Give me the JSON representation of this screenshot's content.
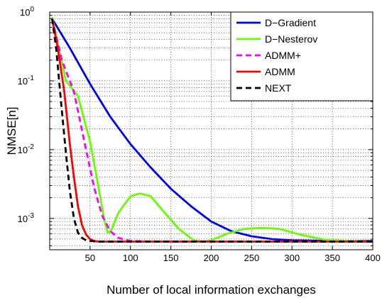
{
  "chart_data": {
    "type": "line",
    "xlabel": "Number of local information exchanges",
    "ylabel": "NMSE[n]",
    "xlim": [
      0,
      400
    ],
    "ylim": [
      0.00035,
      1
    ],
    "yscale": "log",
    "grid": true,
    "legend_position": "top-right",
    "x_ticks": [
      50,
      100,
      150,
      200,
      250,
      300,
      350,
      400
    ],
    "x_tick_labels": [
      "50",
      "100",
      "150",
      "200",
      "250",
      "300",
      "350",
      "400"
    ],
    "y_ticks": [
      1,
      0.1,
      0.01,
      0.001
    ],
    "y_tick_labels": [
      {
        "base": "10",
        "exp": "0"
      },
      {
        "base": "10",
        "exp": "-1"
      },
      {
        "base": "10",
        "exp": "-2"
      },
      {
        "base": "10",
        "exp": "-3"
      }
    ],
    "series": [
      {
        "name": "D−Gradient",
        "color": "#0000ff",
        "dash": "solid",
        "x": [
          3,
          25,
          50,
          75,
          100,
          125,
          150,
          175,
          200,
          225,
          250,
          275,
          300,
          350,
          400
        ],
        "y": [
          0.8,
          0.3,
          0.09,
          0.03,
          0.012,
          0.0055,
          0.0027,
          0.0015,
          0.0009,
          0.00065,
          0.00055,
          0.0005,
          0.00048,
          0.00047,
          0.00047
        ]
      },
      {
        "name": "D−Nesterov",
        "color": "#66ff00",
        "dash": "solid",
        "x": [
          3,
          20,
          35,
          50,
          60,
          68,
          72,
          76,
          85,
          100,
          112,
          125,
          140,
          160,
          178,
          190,
          200,
          220,
          240,
          262,
          285,
          310,
          340,
          370,
          400
        ],
        "y": [
          0.85,
          0.1,
          0.06,
          0.013,
          0.003,
          0.0009,
          0.00062,
          0.00066,
          0.0012,
          0.0021,
          0.0023,
          0.0021,
          0.0013,
          0.0007,
          0.00048,
          0.00046,
          0.00048,
          0.0006,
          0.0007,
          0.00073,
          0.0007,
          0.00058,
          0.00049,
          0.00047,
          0.00046
        ]
      },
      {
        "name": "ADMM+",
        "color": "#ff00ff",
        "dash": "dashed",
        "x": [
          3,
          15,
          30,
          45,
          55,
          65,
          75,
          85,
          100,
          130,
          160,
          200,
          300,
          400
        ],
        "y": [
          0.8,
          0.2,
          0.07,
          0.01,
          0.0028,
          0.0011,
          0.00065,
          0.00052,
          0.00047,
          0.00046,
          0.00046,
          0.00046,
          0.00046,
          0.00046
        ]
      },
      {
        "name": "ADMM",
        "color": "#ff0000",
        "dash": "solid",
        "x": [
          3,
          10,
          18,
          25,
          30,
          35,
          40,
          45,
          50,
          55,
          60,
          70,
          100,
          200,
          300,
          400
        ],
        "y": [
          0.8,
          0.3,
          0.07,
          0.012,
          0.004,
          0.0015,
          0.0008,
          0.00058,
          0.0005,
          0.00047,
          0.00046,
          0.00046,
          0.00046,
          0.00046,
          0.00046,
          0.00046
        ]
      },
      {
        "name": "NEXT",
        "color": "#000000",
        "dash": "dashed",
        "x": [
          3,
          8,
          14,
          20,
          25,
          30,
          35,
          40,
          45,
          50,
          60,
          100,
          200,
          300,
          400
        ],
        "y": [
          0.8,
          0.3,
          0.05,
          0.009,
          0.0025,
          0.001,
          0.00062,
          0.00052,
          0.00048,
          0.00047,
          0.00046,
          0.00046,
          0.00046,
          0.00046,
          0.00046
        ]
      }
    ]
  }
}
